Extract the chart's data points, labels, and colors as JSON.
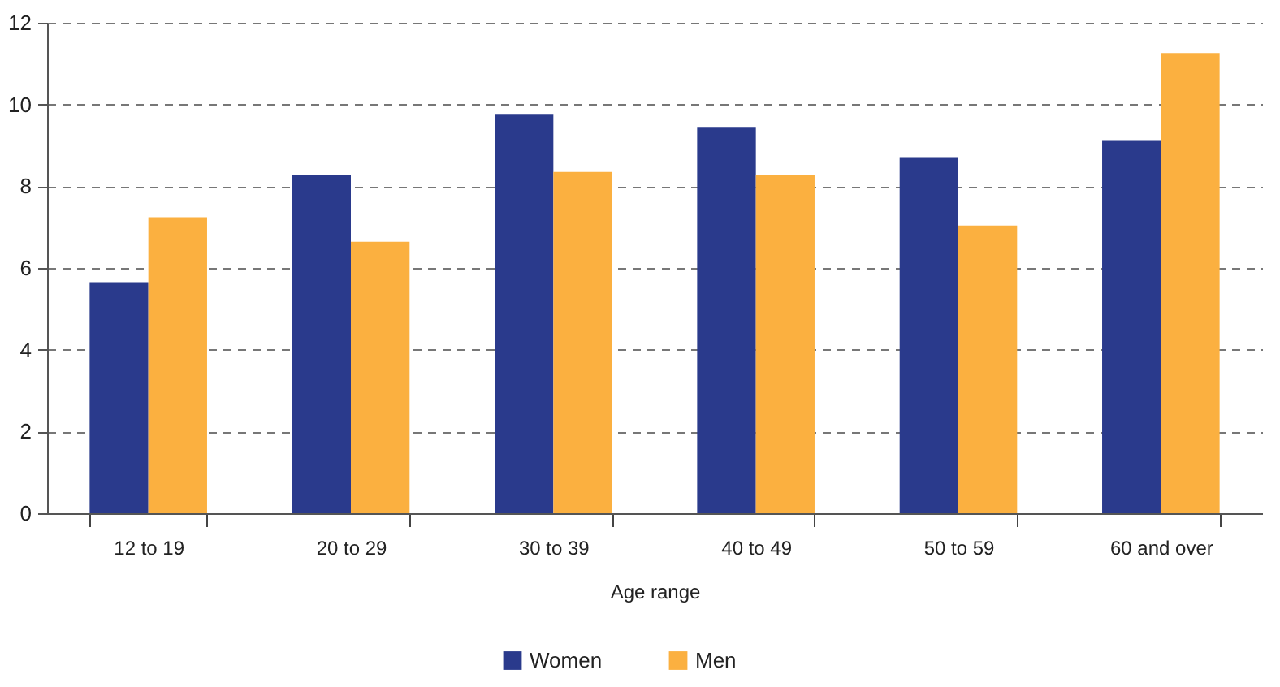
{
  "chart_data": {
    "type": "bar",
    "xlabel": "Age range",
    "categories": [
      "12 to 19",
      "20 to 29",
      "30 to 39",
      "40 to 49",
      "50 to 59",
      "60 and over"
    ],
    "series": [
      {
        "name": "Women",
        "color": "#2a3a8c",
        "values": [
          5.65,
          8.27,
          9.75,
          9.43,
          8.71,
          9.11
        ]
      },
      {
        "name": "Men",
        "color": "#fbb040",
        "values": [
          7.24,
          6.64,
          8.35,
          8.27,
          7.04,
          11.26
        ]
      }
    ],
    "ylim": [
      0,
      12
    ],
    "yticks": [
      0,
      2,
      4,
      6,
      8,
      10,
      12
    ],
    "grid": "y",
    "legend": "bottom"
  }
}
